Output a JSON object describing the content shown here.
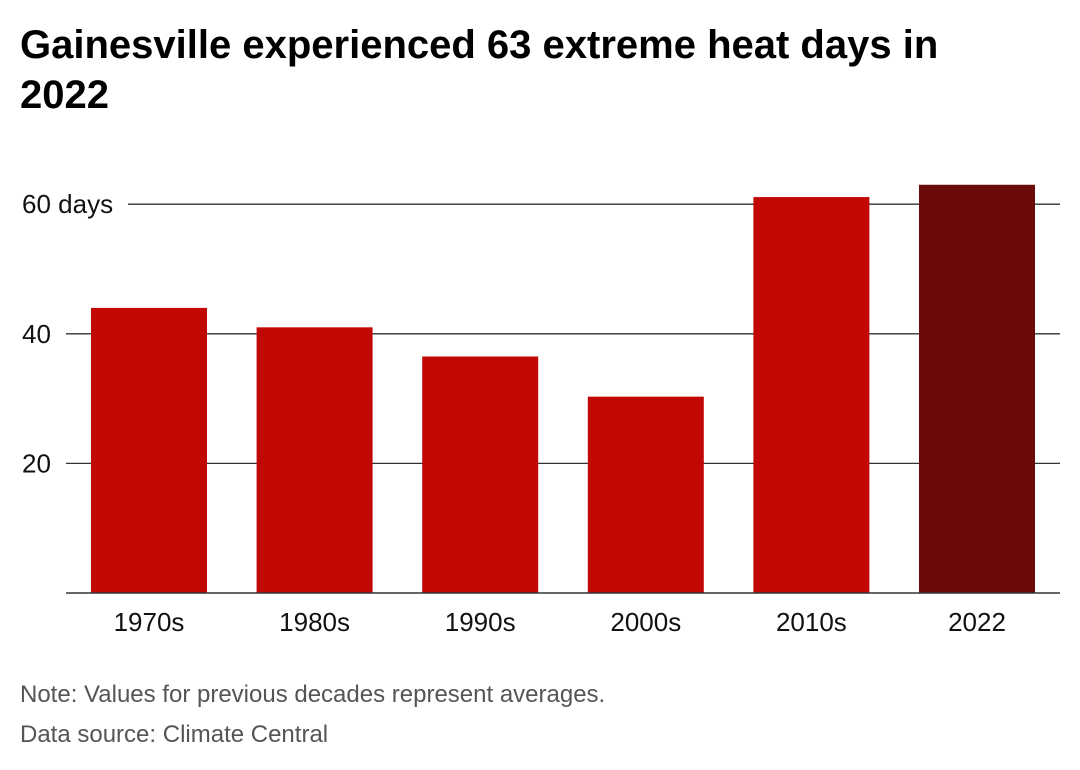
{
  "title": "Gainesville experienced 63 extreme heat days in 2022",
  "note": "Note: Values for previous decades represent averages.",
  "source": "Data source: Climate Central",
  "colors": {
    "bar": "#c10804",
    "highlight": "#6a0a0a",
    "grid": "#333333",
    "text": "#111111",
    "footer": "#555555"
  },
  "chart_data": {
    "type": "bar",
    "categories": [
      "1970s",
      "1980s",
      "1990s",
      "2000s",
      "2010s",
      "2022"
    ],
    "values": [
      44,
      41,
      36.5,
      30.3,
      61.1,
      63
    ],
    "highlight_index": 5,
    "ylim": [
      0,
      60
    ],
    "yticks": [
      20,
      40,
      60
    ],
    "ytick_labels": [
      "20",
      "40",
      "60 days"
    ],
    "grid": true,
    "title": "Gainesville experienced 63 extreme heat days in 2022",
    "xlabel": "",
    "ylabel": ""
  }
}
